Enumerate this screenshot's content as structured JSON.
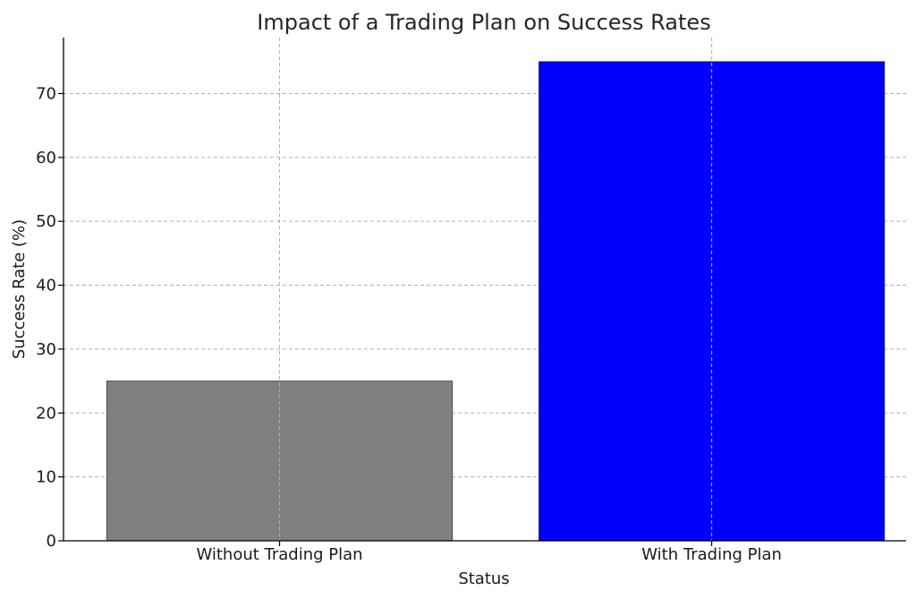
{
  "chart_data": {
    "type": "bar",
    "title": "Impact of a Trading Plan on Success Rates",
    "xlabel": "Status",
    "ylabel": "Success Rate (%)",
    "categories": [
      "Without Trading Plan",
      "With Trading Plan"
    ],
    "values": [
      25,
      75
    ],
    "colors": [
      "#808080",
      "#0000ff"
    ],
    "ylim": [
      0,
      78.75
    ],
    "yticks": [
      0,
      10,
      20,
      30,
      40,
      50,
      60,
      70
    ],
    "grid": true
  }
}
